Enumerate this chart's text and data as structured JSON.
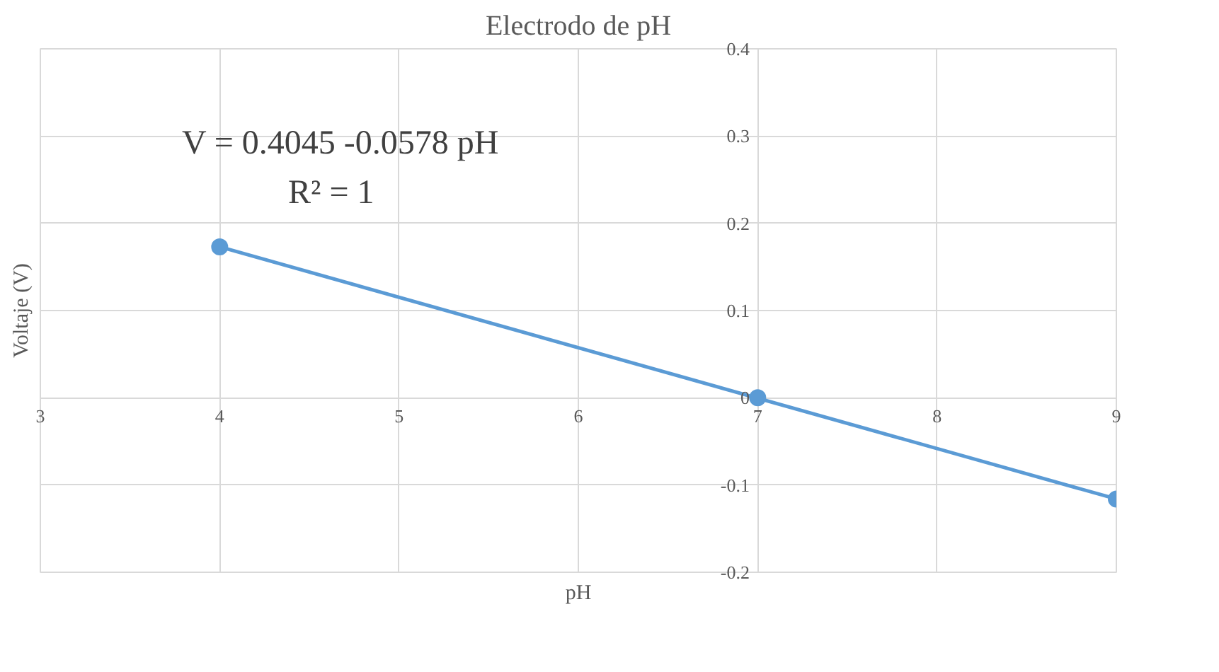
{
  "chart_data": {
    "type": "scatter",
    "title": "Electrodo de pH",
    "xlabel": "pH",
    "ylabel": "Voltaje (V)",
    "annotations": [
      "V = 0.4045 -0.0578 pH",
      "R² = 1"
    ],
    "xlim": [
      3,
      9
    ],
    "ylim": [
      -0.2,
      0.4
    ],
    "xticks": [
      3,
      4,
      5,
      6,
      7,
      8,
      9
    ],
    "yticks": [
      -0.2,
      -0.1,
      0,
      0.1,
      0.2,
      0.3,
      0.4
    ],
    "grid": true,
    "series": [
      {
        "color": "#5b9bd5",
        "x": [
          4,
          7,
          9
        ],
        "values": [
          0.173,
          0.0,
          -0.116
        ],
        "marker": "circle"
      },
      {
        "type": "line",
        "color": "#5b9bd5",
        "x": [
          4,
          9
        ],
        "values": [
          0.173,
          -0.116
        ],
        "line_style": "solid",
        "marker": "none"
      }
    ]
  }
}
